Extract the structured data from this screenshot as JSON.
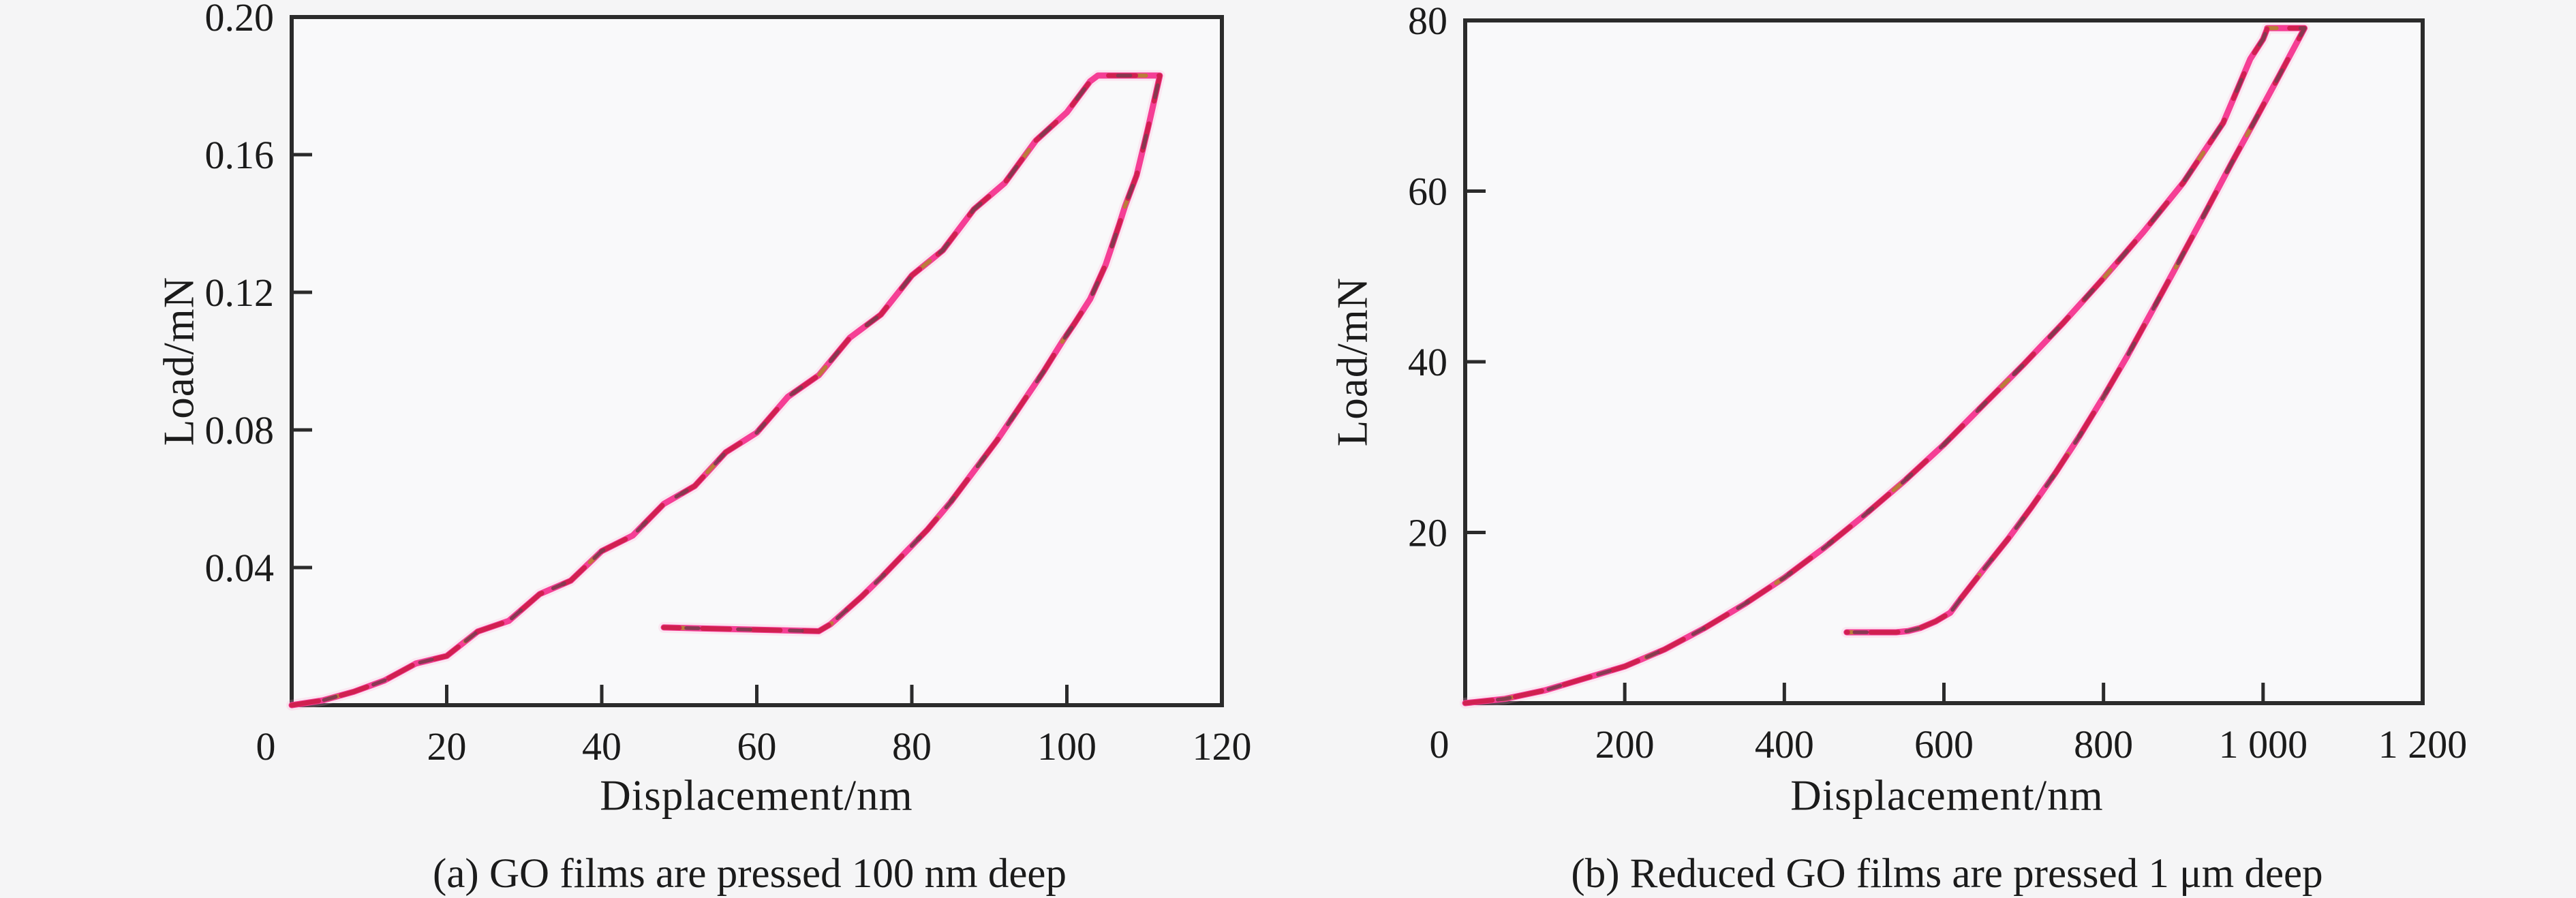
{
  "page": {
    "background": "#f5f5f6"
  },
  "style": {
    "axis": "#2b2b2b",
    "text": "#1b1b1b",
    "plot_bg": "#f9f9fa",
    "curve_halo": "#ffa8d2",
    "curve_pink": "#f53e95",
    "curve_crimson": "#d02050",
    "curve_dark": "#84394f",
    "curve_olive": "#b5832f"
  },
  "chart_data": [
    {
      "id": "a",
      "type": "line",
      "caption": "(a) GO films are pressed 100 nm deep",
      "xlabel": "Displacement/nm",
      "ylabel": "Load/mN",
      "xlim": [
        0,
        120
      ],
      "ylim": [
        0,
        0.2
      ],
      "grid": false,
      "legend": "none",
      "x_ticks": [
        {
          "v": 0,
          "label": "0"
        },
        {
          "v": 20,
          "label": "20"
        },
        {
          "v": 40,
          "label": "40"
        },
        {
          "v": 60,
          "label": "60"
        },
        {
          "v": 80,
          "label": "80"
        },
        {
          "v": 100,
          "label": "100"
        },
        {
          "v": 120,
          "label": "120"
        }
      ],
      "y_ticks": [
        {
          "v": 0.04,
          "label": "0.04"
        },
        {
          "v": 0.08,
          "label": "0.08"
        },
        {
          "v": 0.12,
          "label": "0.12"
        },
        {
          "v": 0.16,
          "label": "0.16"
        },
        {
          "v": 0.2,
          "label": "0.20"
        }
      ],
      "series": [
        {
          "name": "loading",
          "points": [
            [
              0,
              0
            ],
            [
              4,
              0.0014
            ],
            [
              8,
              0.0039
            ],
            [
              12,
              0.0072
            ],
            [
              16,
              0.0121
            ],
            [
              20,
              0.0143
            ],
            [
              24,
              0.0214
            ],
            [
              28,
              0.0245
            ],
            [
              32,
              0.0323
            ],
            [
              36,
              0.0362
            ],
            [
              40,
              0.0448
            ],
            [
              44,
              0.0493
            ],
            [
              48,
              0.0585
            ],
            [
              52,
              0.0637
            ],
            [
              56,
              0.0735
            ],
            [
              60,
              0.0792
            ],
            [
              64,
              0.0896
            ],
            [
              68,
              0.0959
            ],
            [
              72,
              0.1068
            ],
            [
              76,
              0.1135
            ],
            [
              80,
              0.1249
            ],
            [
              84,
              0.1322
            ],
            [
              88,
              0.1441
            ],
            [
              92,
              0.1518
            ],
            [
              96,
              0.1641
            ],
            [
              100,
              0.1723
            ],
            [
              103,
              0.1813
            ],
            [
              104,
              0.183
            ]
          ]
        },
        {
          "name": "peak-hold",
          "points": [
            [
              104,
              0.183
            ],
            [
              112,
              0.183
            ]
          ]
        },
        {
          "name": "unloading",
          "points": [
            [
              112,
              0.183
            ],
            [
              110.5,
              0.168
            ],
            [
              109,
              0.154
            ],
            [
              107.5,
              0.145
            ],
            [
              106.8,
              0.14
            ],
            [
              105,
              0.128
            ],
            [
              103,
              0.118
            ],
            [
              101,
              0.111
            ],
            [
              99.5,
              0.106
            ],
            [
              97,
              0.097
            ],
            [
              94,
              0.087
            ],
            [
              91,
              0.077
            ],
            [
              88,
              0.068
            ],
            [
              85,
              0.059
            ],
            [
              82,
              0.051
            ],
            [
              79,
              0.044
            ],
            [
              76,
              0.037
            ],
            [
              73.5,
              0.0315
            ],
            [
              71,
              0.0265
            ],
            [
              69.5,
              0.0235
            ],
            [
              68,
              0.0215
            ]
          ]
        },
        {
          "name": "drift-hold",
          "points": [
            [
              68,
              0.0215
            ],
            [
              55,
              0.0222
            ],
            [
              48,
              0.0226
            ]
          ]
        }
      ]
    },
    {
      "id": "b",
      "type": "line",
      "caption": "(b) Reduced GO films are pressed 1 μm deep",
      "xlabel": "Displacement/nm",
      "ylabel": "Load/mN",
      "xlim": [
        0,
        1200
      ],
      "ylim": [
        0,
        80
      ],
      "grid": false,
      "legend": "none",
      "x_ticks": [
        {
          "v": 0,
          "label": "0"
        },
        {
          "v": 200,
          "label": "200"
        },
        {
          "v": 400,
          "label": "400"
        },
        {
          "v": 600,
          "label": "600"
        },
        {
          "v": 800,
          "label": "800"
        },
        {
          "v": 1000,
          "label": "1 000"
        },
        {
          "v": 1200,
          "label": "1 200"
        }
      ],
      "y_ticks": [
        {
          "v": 20,
          "label": "20"
        },
        {
          "v": 40,
          "label": "40"
        },
        {
          "v": 60,
          "label": "60"
        },
        {
          "v": 80,
          "label": "80"
        }
      ],
      "series": [
        {
          "name": "loading",
          "points": [
            [
              0,
              0
            ],
            [
              50,
              0.5
            ],
            [
              100,
              1.5
            ],
            [
              150,
              2.9
            ],
            [
              200,
              4.3
            ],
            [
              250,
              6.3
            ],
            [
              300,
              8.8
            ],
            [
              350,
              11.6
            ],
            [
              400,
              14.7
            ],
            [
              450,
              18.2
            ],
            [
              500,
              22.0
            ],
            [
              550,
              26.0
            ],
            [
              600,
              30.3
            ],
            [
              650,
              35.0
            ],
            [
              700,
              39.7
            ],
            [
              750,
              44.6
            ],
            [
              800,
              49.8
            ],
            [
              850,
              55.2
            ],
            [
              900,
              61.0
            ],
            [
              950,
              68.0
            ],
            [
              984,
              75.5
            ],
            [
              1000,
              77.8
            ],
            [
              1005,
              79.0
            ]
          ]
        },
        {
          "name": "peak-hold",
          "points": [
            [
              1005,
              79.1
            ],
            [
              1052,
              79.1
            ]
          ]
        },
        {
          "name": "unloading",
          "points": [
            [
              1052,
              79.1
            ],
            [
              1020,
              73.5
            ],
            [
              990,
              68.3
            ],
            [
              960,
              63.2
            ],
            [
              930,
              57.9
            ],
            [
              900,
              52.7
            ],
            [
              888,
              50.6
            ],
            [
              860,
              45.8
            ],
            [
              830,
              40.7
            ],
            [
              800,
              35.9
            ],
            [
              770,
              31.3
            ],
            [
              740,
              27.0
            ],
            [
              710,
              23.0
            ],
            [
              680,
              19.2
            ],
            [
              650,
              15.7
            ],
            [
              620,
              12.1
            ],
            [
              608,
              10.6
            ],
            [
              590,
              9.6
            ],
            [
              570,
              8.8
            ],
            [
              555,
              8.45
            ],
            [
              540,
              8.3
            ]
          ]
        },
        {
          "name": "drift-hold",
          "points": [
            [
              540,
              8.3
            ],
            [
              510,
              8.3
            ],
            [
              478,
              8.3
            ]
          ]
        }
      ]
    }
  ]
}
